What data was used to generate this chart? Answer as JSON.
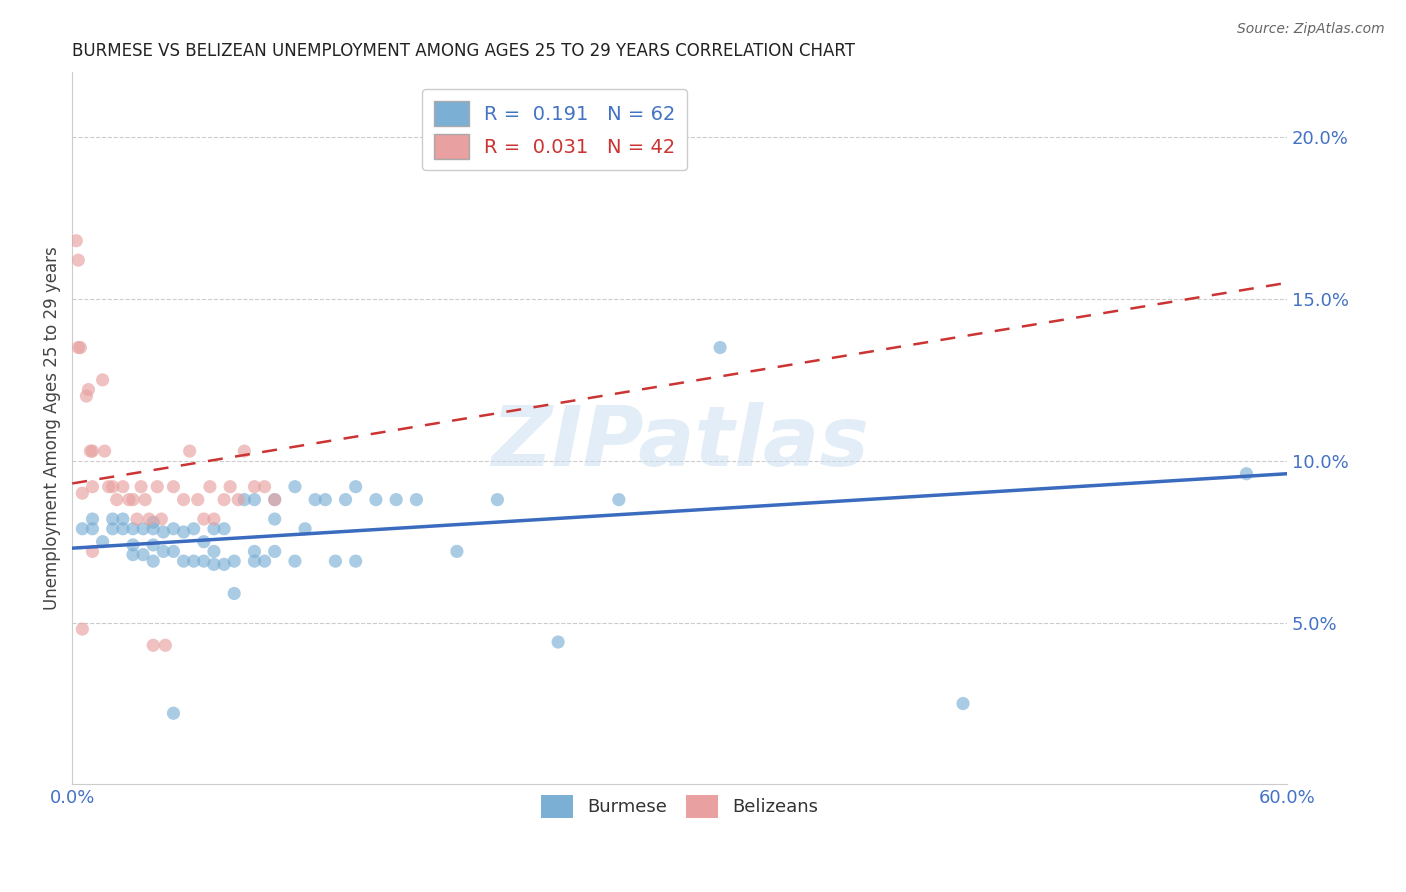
{
  "title": "BURMESE VS BELIZEAN UNEMPLOYMENT AMONG AGES 25 TO 29 YEARS CORRELATION CHART",
  "source": "Source: ZipAtlas.com",
  "ylabel": "Unemployment Among Ages 25 to 29 years",
  "xlim": [
    0.0,
    0.6
  ],
  "ylim": [
    0.0,
    0.22
  ],
  "xticks": [
    0.0,
    0.6
  ],
  "xticklabels": [
    "0.0%",
    "60.0%"
  ],
  "yticks_right": [
    0.05,
    0.1,
    0.15,
    0.2
  ],
  "yticklabels_right": [
    "5.0%",
    "10.0%",
    "15.0%",
    "20.0%"
  ],
  "burmese_R": "0.191",
  "burmese_N": "62",
  "belizean_R": "0.031",
  "belizean_N": "42",
  "burmese_color": "#7bafd4",
  "belizean_color": "#e8a0a0",
  "burmese_line_color": "#3a6bbf",
  "belizean_line_color": "#cc3333",
  "scatter_alpha": 0.65,
  "scatter_size": 90,
  "burmese_x": [
    0.005,
    0.01,
    0.01,
    0.015,
    0.02,
    0.02,
    0.025,
    0.025,
    0.03,
    0.03,
    0.03,
    0.035,
    0.035,
    0.04,
    0.04,
    0.04,
    0.04,
    0.045,
    0.045,
    0.05,
    0.05,
    0.05,
    0.055,
    0.055,
    0.06,
    0.06,
    0.065,
    0.065,
    0.07,
    0.07,
    0.07,
    0.075,
    0.075,
    0.08,
    0.08,
    0.085,
    0.09,
    0.09,
    0.09,
    0.095,
    0.1,
    0.1,
    0.1,
    0.11,
    0.11,
    0.115,
    0.12,
    0.125,
    0.13,
    0.135,
    0.14,
    0.14,
    0.15,
    0.16,
    0.17,
    0.19,
    0.21,
    0.24,
    0.27,
    0.32,
    0.44,
    0.58
  ],
  "burmese_y": [
    0.079,
    0.079,
    0.082,
    0.075,
    0.079,
    0.082,
    0.079,
    0.082,
    0.071,
    0.074,
    0.079,
    0.071,
    0.079,
    0.069,
    0.074,
    0.079,
    0.081,
    0.072,
    0.078,
    0.022,
    0.072,
    0.079,
    0.069,
    0.078,
    0.069,
    0.079,
    0.069,
    0.075,
    0.068,
    0.072,
    0.079,
    0.068,
    0.079,
    0.059,
    0.069,
    0.088,
    0.069,
    0.072,
    0.088,
    0.069,
    0.072,
    0.082,
    0.088,
    0.069,
    0.092,
    0.079,
    0.088,
    0.088,
    0.069,
    0.088,
    0.069,
    0.092,
    0.088,
    0.088,
    0.088,
    0.072,
    0.088,
    0.044,
    0.088,
    0.135,
    0.025,
    0.096
  ],
  "belizean_x": [
    0.002,
    0.003,
    0.003,
    0.004,
    0.005,
    0.005,
    0.007,
    0.008,
    0.009,
    0.01,
    0.01,
    0.01,
    0.015,
    0.016,
    0.018,
    0.02,
    0.022,
    0.025,
    0.028,
    0.03,
    0.032,
    0.034,
    0.036,
    0.038,
    0.04,
    0.042,
    0.044,
    0.046,
    0.05,
    0.055,
    0.058,
    0.062,
    0.065,
    0.068,
    0.07,
    0.075,
    0.078,
    0.082,
    0.085,
    0.09,
    0.095,
    0.1
  ],
  "belizean_y": [
    0.168,
    0.162,
    0.135,
    0.135,
    0.09,
    0.048,
    0.12,
    0.122,
    0.103,
    0.103,
    0.092,
    0.072,
    0.125,
    0.103,
    0.092,
    0.092,
    0.088,
    0.092,
    0.088,
    0.088,
    0.082,
    0.092,
    0.088,
    0.082,
    0.043,
    0.092,
    0.082,
    0.043,
    0.092,
    0.088,
    0.103,
    0.088,
    0.082,
    0.092,
    0.082,
    0.088,
    0.092,
    0.088,
    0.103,
    0.092,
    0.092,
    0.088
  ],
  "burmese_trend": [
    0.0,
    0.6,
    0.073,
    0.096
  ],
  "belizean_trend": [
    0.0,
    0.6,
    0.093,
    0.155
  ],
  "watermark_text": "ZIPatlas",
  "watermark_color": "#c8ddf0",
  "watermark_alpha": 0.5,
  "background_color": "#ffffff",
  "grid_color": "#cccccc",
  "title_color": "#222222",
  "axis_color": "#4472c4",
  "source_color": "#666666",
  "legend_box_color": "#dddddd"
}
